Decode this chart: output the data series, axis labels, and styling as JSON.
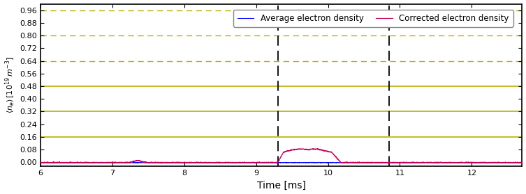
{
  "title": "",
  "xlabel": "Time [ms]",
  "ylabel": "$\\langle n_e \\rangle\\, [10^{19}\\, m^{-3}]$",
  "xlim": [
    6,
    12.7
  ],
  "ylim": [
    -0.025,
    1.0
  ],
  "yticks": [
    0.0,
    0.08,
    0.16,
    0.24,
    0.32,
    0.4,
    0.48,
    0.56,
    0.64,
    0.72,
    0.8,
    0.88,
    0.96
  ],
  "xticks": [
    6,
    7,
    8,
    9,
    10,
    11,
    12
  ],
  "legend_entries": [
    "Average electron density",
    "Corrected electron density"
  ],
  "hlines_solid": [
    0.48,
    0.32,
    0.16
  ],
  "hlines_solid_color": "#b8b000",
  "hlines_dashed": [
    0.96,
    0.8,
    0.64
  ],
  "hlines_dashed_color": "#b8b000",
  "vlines": [
    9.3,
    10.85
  ],
  "vline_color": "black",
  "avg_line_color": "blue",
  "corr_line_color": "#c8005a",
  "background_color": "white"
}
